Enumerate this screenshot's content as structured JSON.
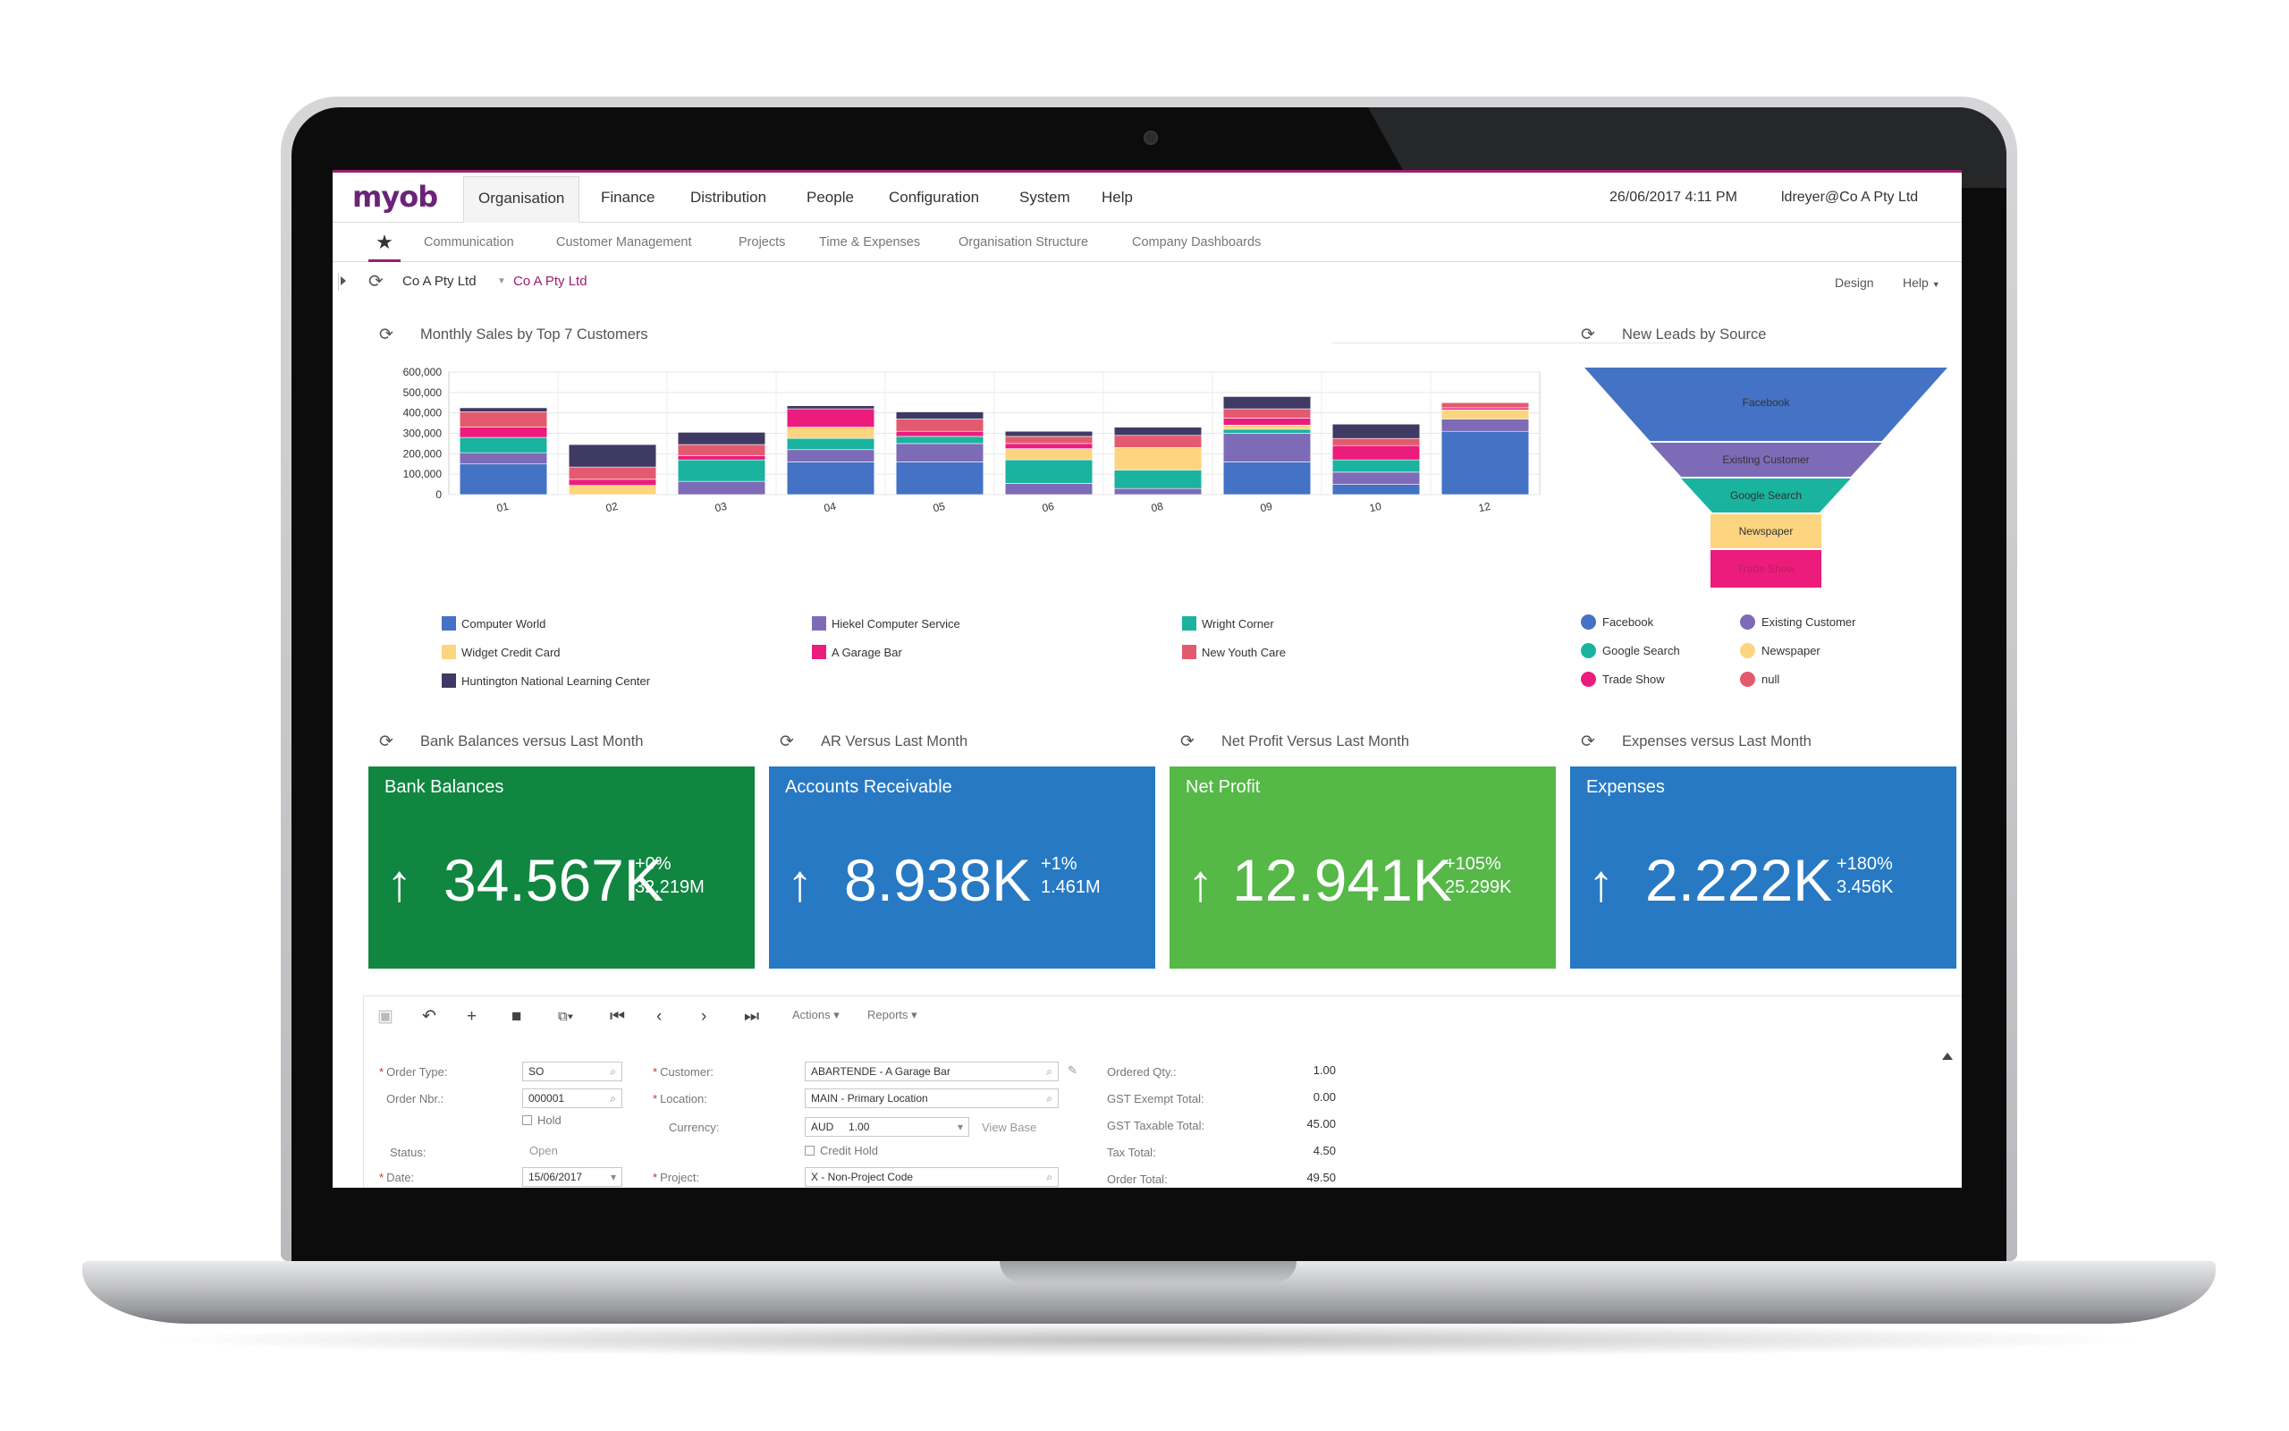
{
  "app": {
    "logo": "myob",
    "nav": [
      "Organisation",
      "Finance",
      "Distribution",
      "People",
      "Configuration",
      "System",
      "Help"
    ],
    "datetime": "26/06/2017  4:11 PM",
    "user": "ldreyer@Co A Pty Ltd",
    "subnav": [
      "Communication",
      "Customer Management",
      "Projects",
      "Time & Expenses",
      "Organisation Structure",
      "Company Dashboards"
    ],
    "breadcrumb": {
      "company": "Co A Pty Ltd",
      "link": "Co A Pty Ltd"
    },
    "actions": {
      "design": "Design",
      "help": "Help"
    }
  },
  "widgets": {
    "sales_title": "Monthly Sales by Top 7 Customers",
    "leads_title": "New Leads by Source",
    "bank_title": "Bank Balances versus Last Month",
    "ar_title": "AR Versus Last Month",
    "np_title": "Net Profit Versus Last Month",
    "exp_title": "Expenses versus Last Month"
  },
  "chart_data": [
    {
      "type": "bar",
      "stacked": true,
      "title": "Monthly Sales by Top 7 Customers",
      "categories": [
        "01",
        "02",
        "03",
        "04",
        "05",
        "06",
        "08",
        "09",
        "10",
        "12"
      ],
      "yticks": [
        "600,000",
        "500,000",
        "400,000",
        "300,000",
        "200,000",
        "100,000",
        "0"
      ],
      "ylim": [
        0,
        600000
      ],
      "grid": true,
      "legend_position": "bottom",
      "series": [
        {
          "name": "Computer World",
          "color": "#4472c4",
          "values": [
            150000,
            0,
            0,
            160000,
            160000,
            0,
            0,
            160000,
            50000,
            310000
          ]
        },
        {
          "name": "Hiekel Computer Service",
          "color": "#7e6bb7",
          "values": [
            55000,
            0,
            65000,
            60000,
            90000,
            55000,
            30000,
            140000,
            60000,
            60000
          ]
        },
        {
          "name": "Wright Corner",
          "color": "#1ab39f",
          "values": [
            75000,
            0,
            105000,
            55000,
            35000,
            115000,
            90000,
            20000,
            60000,
            0
          ]
        },
        {
          "name": "Widget Credit Card",
          "color": "#fdd47f",
          "values": [
            0,
            45000,
            0,
            55000,
            0,
            55000,
            110000,
            20000,
            0,
            45000
          ]
        },
        {
          "name": "A Garage Bar",
          "color": "#ec1c7d",
          "values": [
            50000,
            30000,
            20000,
            90000,
            25000,
            25000,
            0,
            35000,
            70000,
            10000
          ]
        },
        {
          "name": "New Youth Care",
          "color": "#e35a6f",
          "values": [
            75000,
            60000,
            55000,
            0,
            60000,
            35000,
            60000,
            45000,
            35000,
            25000
          ]
        },
        {
          "name": "Huntington National Learning Center",
          "color": "#3f3a63",
          "values": [
            20000,
            110000,
            60000,
            15000,
            35000,
            25000,
            40000,
            60000,
            70000,
            0
          ]
        }
      ]
    },
    {
      "type": "funnel",
      "title": "New Leads by Source",
      "categories": [
        "Facebook",
        "Existing Customer",
        "Google Search",
        "Newspaper",
        "Trade Show"
      ],
      "colors": [
        "#4472c4",
        "#7e6bb7",
        "#1ab39f",
        "#fdd47f",
        "#ec1c7d"
      ],
      "legend": [
        {
          "name": "Facebook",
          "color": "#4472c4"
        },
        {
          "name": "Existing Customer",
          "color": "#7e6bb7"
        },
        {
          "name": "Google Search",
          "color": "#1ab39f"
        },
        {
          "name": "Newspaper",
          "color": "#fdd47f"
        },
        {
          "name": "Trade Show",
          "color": "#ec1c7d"
        },
        {
          "name": "null",
          "color": "#e35a6f"
        }
      ]
    }
  ],
  "kpis": [
    {
      "label": "Bank Balances",
      "arrow": "↑",
      "value": "34.567K",
      "change": "+0%",
      "previous": "32.219M",
      "color": "#108641"
    },
    {
      "label": "Accounts Receivable",
      "arrow": "↑",
      "value": "8.938K",
      "change": "+1%",
      "previous": "1.461M",
      "color": "#2779c4"
    },
    {
      "label": "Net Profit",
      "arrow": "↑",
      "value": "12.941K",
      "change": "+105%",
      "previous": "25.299K",
      "color": "#55b847"
    },
    {
      "label": "Expenses",
      "arrow": "↑",
      "value": "2.222K",
      "change": "+180%",
      "previous": "3.456K",
      "color": "#2779c4"
    }
  ],
  "form": {
    "toolbar": {
      "actions": "Actions",
      "reports": "Reports"
    },
    "order_type_label": "Order Type:",
    "order_type": "SO",
    "order_nbr_label": "Order Nbr.:",
    "order_nbr": "000001",
    "hold_label": "Hold",
    "status_label": "Status:",
    "status": "Open",
    "date_label": "Date:",
    "date": "15/06/2017",
    "customer_label": "Customer:",
    "customer": "ABARTENDE - A Garage Bar",
    "location_label": "Location:",
    "location": "MAIN - Primary Location",
    "currency_label": "Currency:",
    "currency": "AUD",
    "currency_rate": "1.00",
    "view_base": "View Base",
    "credit_hold_label": "Credit Hold",
    "project_label": "Project:",
    "project": "X - Non-Project Code",
    "ordered_qty_label": "Ordered Qty.:",
    "ordered_qty": "1.00",
    "gst_exempt_label": "GST Exempt Total:",
    "gst_exempt": "0.00",
    "gst_taxable_label": "GST Taxable Total:",
    "gst_taxable": "45.00",
    "tax_total_label": "Tax Total:",
    "tax_total": "4.50",
    "order_total_label": "Order Total:",
    "order_total": "49.50"
  }
}
